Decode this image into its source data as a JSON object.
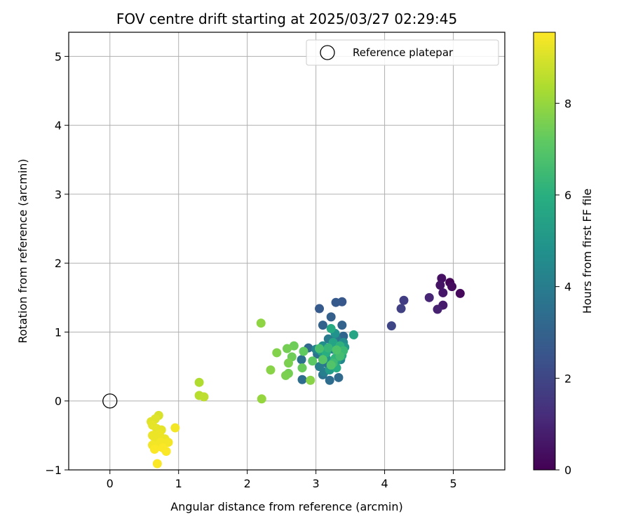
{
  "chart_data": {
    "type": "scatter",
    "title": "FOV centre drift starting at 2025/03/27 02:29:45",
    "xlabel": "Angular distance from reference (arcmin)",
    "ylabel": "Rotation from reference (arcmin)",
    "xlim": [
      -0.6,
      5.75
    ],
    "ylim": [
      -1.0,
      5.35
    ],
    "xticks": [
      0,
      1,
      2,
      3,
      4,
      5
    ],
    "yticks": [
      -1,
      0,
      1,
      2,
      3,
      4,
      5
    ],
    "grid": true,
    "legend": {
      "position": "top-right",
      "entries": [
        "Reference platepar"
      ]
    },
    "reference_point": {
      "x": 0,
      "y": 0,
      "label": "Reference platepar"
    },
    "colorbar": {
      "label": "Hours from first FF file",
      "range": [
        0,
        9.55
      ],
      "ticks": [
        0,
        2,
        4,
        6,
        8
      ],
      "colormap": "viridis",
      "stops": [
        "#440154",
        "#472d7b",
        "#3b528b",
        "#2c728e",
        "#21918c",
        "#28ae80",
        "#5ec962",
        "#addc30",
        "#fde725"
      ]
    },
    "points": [
      {
        "x": 4.95,
        "y": 1.72,
        "c": 0.1
      },
      {
        "x": 5.1,
        "y": 1.56,
        "c": 0.2
      },
      {
        "x": 4.98,
        "y": 1.66,
        "c": 0.3
      },
      {
        "x": 4.83,
        "y": 1.78,
        "c": 0.4
      },
      {
        "x": 4.81,
        "y": 1.68,
        "c": 0.5
      },
      {
        "x": 4.85,
        "y": 1.57,
        "c": 0.6
      },
      {
        "x": 4.85,
        "y": 1.39,
        "c": 0.7
      },
      {
        "x": 4.77,
        "y": 1.33,
        "c": 0.9
      },
      {
        "x": 4.65,
        "y": 1.5,
        "c": 1.0
      },
      {
        "x": 4.28,
        "y": 1.46,
        "c": 1.7
      },
      {
        "x": 4.24,
        "y": 1.34,
        "c": 1.8
      },
      {
        "x": 4.1,
        "y": 1.09,
        "c": 2.0
      },
      {
        "x": 3.38,
        "y": 1.44,
        "c": 2.6
      },
      {
        "x": 3.29,
        "y": 1.43,
        "c": 2.7
      },
      {
        "x": 3.05,
        "y": 1.34,
        "c": 2.7
      },
      {
        "x": 3.22,
        "y": 1.22,
        "c": 2.9
      },
      {
        "x": 3.38,
        "y": 1.1,
        "c": 3.0
      },
      {
        "x": 3.1,
        "y": 1.1,
        "c": 3.0
      },
      {
        "x": 3.4,
        "y": 0.94,
        "c": 3.1
      },
      {
        "x": 2.89,
        "y": 0.77,
        "c": 3.2
      },
      {
        "x": 3.33,
        "y": 0.34,
        "c": 3.3
      },
      {
        "x": 3.2,
        "y": 0.3,
        "c": 3.4
      },
      {
        "x": 2.8,
        "y": 0.31,
        "c": 3.4
      },
      {
        "x": 2.79,
        "y": 0.6,
        "c": 3.5
      },
      {
        "x": 3.1,
        "y": 0.38,
        "c": 3.6
      },
      {
        "x": 3.02,
        "y": 0.68,
        "c": 3.6
      },
      {
        "x": 3.15,
        "y": 0.55,
        "c": 3.7
      },
      {
        "x": 3.3,
        "y": 0.9,
        "c": 3.8
      },
      {
        "x": 3.18,
        "y": 0.9,
        "c": 3.9
      },
      {
        "x": 3.05,
        "y": 0.5,
        "c": 4.0
      },
      {
        "x": 3.12,
        "y": 0.42,
        "c": 4.1
      },
      {
        "x": 3.25,
        "y": 0.75,
        "c": 4.2
      },
      {
        "x": 3.0,
        "y": 0.75,
        "c": 4.3
      },
      {
        "x": 3.36,
        "y": 0.6,
        "c": 4.4
      },
      {
        "x": 3.22,
        "y": 0.5,
        "c": 4.5
      },
      {
        "x": 3.4,
        "y": 0.85,
        "c": 4.6
      },
      {
        "x": 3.1,
        "y": 0.8,
        "c": 4.7
      },
      {
        "x": 3.28,
        "y": 0.98,
        "c": 4.8
      },
      {
        "x": 3.33,
        "y": 0.7,
        "c": 4.9
      },
      {
        "x": 3.15,
        "y": 0.62,
        "c": 5.0
      },
      {
        "x": 3.42,
        "y": 0.78,
        "c": 5.1
      },
      {
        "x": 3.2,
        "y": 0.45,
        "c": 5.2
      },
      {
        "x": 3.08,
        "y": 0.72,
        "c": 5.3
      },
      {
        "x": 3.3,
        "y": 0.58,
        "c": 5.4
      },
      {
        "x": 3.25,
        "y": 0.85,
        "c": 5.5
      },
      {
        "x": 3.55,
        "y": 0.96,
        "c": 5.6
      },
      {
        "x": 3.38,
        "y": 0.66,
        "c": 5.7
      },
      {
        "x": 3.22,
        "y": 1.05,
        "c": 5.8
      },
      {
        "x": 3.3,
        "y": 0.48,
        "c": 5.9
      },
      {
        "x": 3.15,
        "y": 0.7,
        "c": 6.0
      },
      {
        "x": 3.35,
        "y": 0.8,
        "c": 6.1
      },
      {
        "x": 3.28,
        "y": 0.62,
        "c": 6.2
      },
      {
        "x": 3.18,
        "y": 0.77,
        "c": 6.3
      },
      {
        "x": 3.4,
        "y": 0.73,
        "c": 6.4
      },
      {
        "x": 3.25,
        "y": 0.55,
        "c": 6.5
      },
      {
        "x": 3.35,
        "y": 0.65,
        "c": 6.6
      },
      {
        "x": 3.05,
        "y": 0.76,
        "c": 6.7
      },
      {
        "x": 3.3,
        "y": 0.74,
        "c": 6.8
      },
      {
        "x": 3.22,
        "y": 0.52,
        "c": 6.9
      },
      {
        "x": 3.1,
        "y": 0.6,
        "c": 7.0
      },
      {
        "x": 2.95,
        "y": 0.58,
        "c": 7.1
      },
      {
        "x": 2.82,
        "y": 0.72,
        "c": 7.2
      },
      {
        "x": 2.8,
        "y": 0.48,
        "c": 7.3
      },
      {
        "x": 2.68,
        "y": 0.8,
        "c": 7.4
      },
      {
        "x": 2.65,
        "y": 0.64,
        "c": 7.4
      },
      {
        "x": 2.6,
        "y": 0.4,
        "c": 7.5
      },
      {
        "x": 2.58,
        "y": 0.76,
        "c": 7.5
      },
      {
        "x": 2.6,
        "y": 0.55,
        "c": 7.6
      },
      {
        "x": 2.56,
        "y": 0.37,
        "c": 7.6
      },
      {
        "x": 2.43,
        "y": 0.7,
        "c": 7.7
      },
      {
        "x": 2.92,
        "y": 0.3,
        "c": 7.8
      },
      {
        "x": 2.34,
        "y": 0.45,
        "c": 7.8
      },
      {
        "x": 2.2,
        "y": 1.13,
        "c": 7.9
      },
      {
        "x": 2.21,
        "y": 0.03,
        "c": 8.0
      },
      {
        "x": 1.3,
        "y": 0.27,
        "c": 8.4
      },
      {
        "x": 1.3,
        "y": 0.08,
        "c": 8.5
      },
      {
        "x": 1.37,
        "y": 0.06,
        "c": 8.6
      },
      {
        "x": 0.71,
        "y": -0.21,
        "c": 9.0
      },
      {
        "x": 0.66,
        "y": -0.26,
        "c": 9.1
      },
      {
        "x": 0.6,
        "y": -0.3,
        "c": 9.1
      },
      {
        "x": 0.62,
        "y": -0.35,
        "c": 9.2
      },
      {
        "x": 0.68,
        "y": -0.4,
        "c": 9.2
      },
      {
        "x": 0.75,
        "y": -0.42,
        "c": 9.2
      },
      {
        "x": 0.72,
        "y": -0.48,
        "c": 9.3
      },
      {
        "x": 0.62,
        "y": -0.5,
        "c": 9.3
      },
      {
        "x": 0.66,
        "y": -0.55,
        "c": 9.3
      },
      {
        "x": 0.8,
        "y": -0.55,
        "c": 9.3
      },
      {
        "x": 0.74,
        "y": -0.6,
        "c": 9.4
      },
      {
        "x": 0.85,
        "y": -0.6,
        "c": 9.4
      },
      {
        "x": 0.62,
        "y": -0.64,
        "c": 9.4
      },
      {
        "x": 0.72,
        "y": -0.66,
        "c": 9.4
      },
      {
        "x": 0.65,
        "y": -0.7,
        "c": 9.5
      },
      {
        "x": 0.82,
        "y": -0.73,
        "c": 9.5
      },
      {
        "x": 0.95,
        "y": -0.39,
        "c": 9.4
      },
      {
        "x": 0.69,
        "y": -0.91,
        "c": 9.5
      },
      {
        "x": 0.77,
        "y": -0.68,
        "c": 9.5
      }
    ]
  }
}
